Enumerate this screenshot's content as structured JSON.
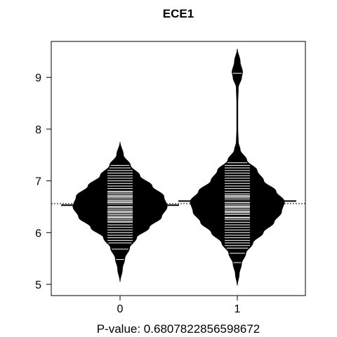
{
  "chart_data": {
    "type": "beanplot",
    "title": "ECE1",
    "xlabel": "P-value: 0.6807822856598672",
    "ylabel": "",
    "categories": [
      "0",
      "1"
    ],
    "y_ticks": [
      5,
      6,
      7,
      8,
      9
    ],
    "y_tick_labels": [
      "5",
      "6",
      "7",
      "8",
      "9"
    ],
    "ylim": [
      4.8,
      9.7
    ],
    "overall_mean": 6.56,
    "grid": false,
    "beans": [
      {
        "category": "0",
        "mean": 6.53,
        "density": [
          [
            5.05,
            0.0
          ],
          [
            5.3,
            0.05
          ],
          [
            5.5,
            0.1
          ],
          [
            5.7,
            0.2
          ],
          [
            5.9,
            0.35
          ],
          [
            6.1,
            0.62
          ],
          [
            6.3,
            0.88
          ],
          [
            6.5,
            1.0
          ],
          [
            6.7,
            0.93
          ],
          [
            6.9,
            0.68
          ],
          [
            7.1,
            0.42
          ],
          [
            7.3,
            0.22
          ],
          [
            7.5,
            0.07
          ],
          [
            7.75,
            0.0
          ]
        ],
        "observations": [
          5.48,
          5.68,
          5.8,
          5.85,
          5.9,
          5.95,
          6.0,
          6.05,
          6.1,
          6.15,
          6.2,
          6.22,
          6.25,
          6.28,
          6.3,
          6.32,
          6.35,
          6.38,
          6.4,
          6.42,
          6.45,
          6.48,
          6.5,
          6.52,
          6.55,
          6.58,
          6.6,
          6.62,
          6.65,
          6.68,
          6.7,
          6.72,
          6.75,
          6.78,
          6.8,
          6.85,
          6.9,
          6.95,
          7.0,
          7.05,
          7.1,
          7.15,
          7.2,
          7.25,
          7.3
        ]
      },
      {
        "category": "1",
        "mean": 6.61,
        "density": [
          [
            4.98,
            0.0
          ],
          [
            5.2,
            0.04
          ],
          [
            5.4,
            0.09
          ],
          [
            5.6,
            0.18
          ],
          [
            5.8,
            0.33
          ],
          [
            6.0,
            0.55
          ],
          [
            6.2,
            0.78
          ],
          [
            6.4,
            0.94
          ],
          [
            6.6,
            1.0
          ],
          [
            6.8,
            0.82
          ],
          [
            7.0,
            0.56
          ],
          [
            7.2,
            0.42
          ],
          [
            7.4,
            0.2
          ],
          [
            7.6,
            0.06
          ],
          [
            7.75,
            0.02
          ],
          [
            8.0,
            0.01
          ],
          [
            8.5,
            0.01
          ],
          [
            8.8,
            0.02
          ],
          [
            9.0,
            0.09
          ],
          [
            9.1,
            0.11
          ],
          [
            9.3,
            0.06
          ],
          [
            9.55,
            0.0
          ]
        ],
        "observations": [
          5.42,
          5.6,
          5.7,
          5.75,
          5.8,
          5.85,
          5.9,
          5.95,
          6.0,
          6.05,
          6.1,
          6.15,
          6.2,
          6.25,
          6.28,
          6.3,
          6.35,
          6.38,
          6.4,
          6.42,
          6.45,
          6.48,
          6.5,
          6.52,
          6.55,
          6.58,
          6.6,
          6.62,
          6.65,
          6.68,
          6.7,
          6.72,
          6.75,
          6.8,
          6.85,
          6.9,
          6.95,
          7.0,
          7.05,
          7.1,
          7.15,
          7.2,
          7.25,
          7.3,
          7.35,
          9.08
        ]
      }
    ]
  }
}
